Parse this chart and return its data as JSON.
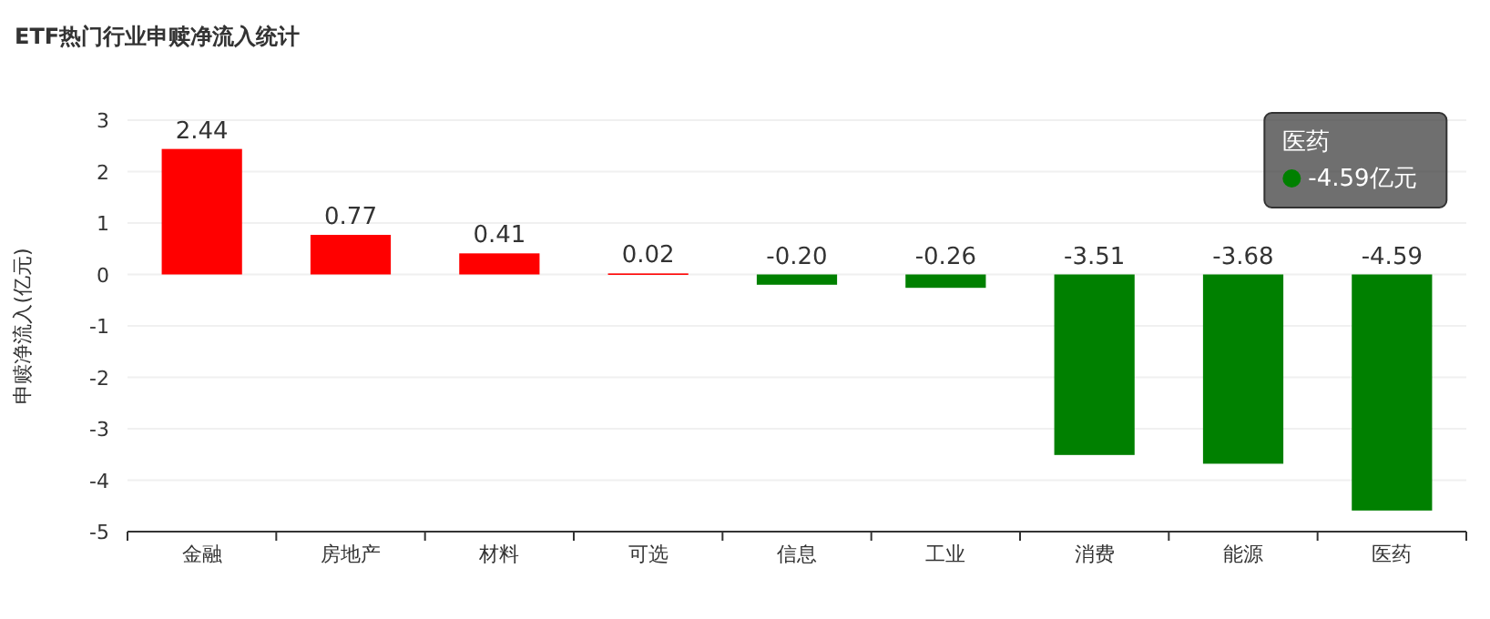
{
  "chart_data": {
    "type": "bar",
    "title": "ETF热门行业申赎净流入统计",
    "ylabel": "申赎净流入(亿元)",
    "categories": [
      "金融",
      "房地产",
      "材料",
      "可选",
      "信息",
      "工业",
      "消费",
      "能源",
      "医药"
    ],
    "values": [
      2.44,
      0.77,
      0.41,
      0.02,
      -0.2,
      -0.26,
      -3.51,
      -3.68,
      -4.59
    ],
    "colors": [
      "#ff0000",
      "#ff0000",
      "#ff0000",
      "#ff0000",
      "#008000",
      "#008000",
      "#008000",
      "#008000",
      "#008000"
    ],
    "ylim": [
      -5,
      3
    ],
    "yticks": [
      -5,
      -4,
      -3,
      -2,
      -1,
      0,
      1,
      2,
      3
    ],
    "grid": "y",
    "value_labels": [
      "2.44",
      "0.77",
      "0.41",
      "0.02",
      "-0.20",
      "-0.26",
      "-3.51",
      "-3.68",
      "-4.59"
    ],
    "annotations": [
      "医药\n-4.59亿元"
    ]
  }
}
